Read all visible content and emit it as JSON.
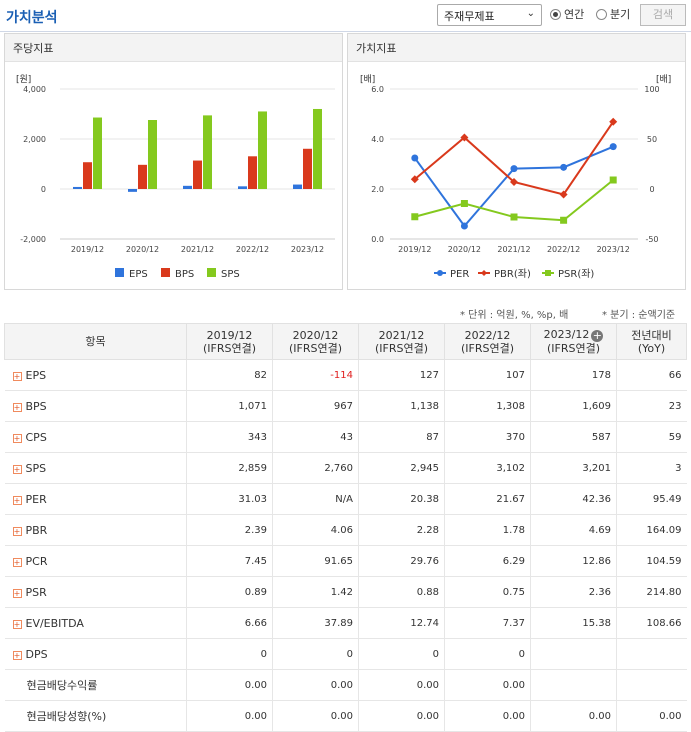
{
  "header": {
    "title": "가치분석",
    "select_value": "주재무제표",
    "radio_annual": "연간",
    "radio_quarter": "분기",
    "search_label": "검색"
  },
  "panels": {
    "left_title": "주당지표",
    "right_title": "가치지표"
  },
  "notes": {
    "unit": "* 단위 : 억원, %, %p, 배",
    "quarter": "* 분기 : 순액기준"
  },
  "colors": {
    "blue": "#2f74dc",
    "red": "#d9391c",
    "green": "#84c91e",
    "brand": "#1a5fb4"
  },
  "chart_data": [
    {
      "type": "bar",
      "unit_label": "[원]",
      "categories": [
        "2019/12",
        "2020/12",
        "2021/12",
        "2022/12",
        "2023/12"
      ],
      "series": [
        {
          "name": "EPS",
          "color": "#2f74dc",
          "values": [
            82,
            -114,
            127,
            107,
            178
          ]
        },
        {
          "name": "BPS",
          "color": "#d9391c",
          "values": [
            1071,
            967,
            1138,
            1308,
            1609
          ]
        },
        {
          "name": "SPS",
          "color": "#84c91e",
          "values": [
            2859,
            2760,
            2945,
            3102,
            3201
          ]
        }
      ],
      "ylim": [
        -2000,
        4000
      ],
      "yticks": [
        "4,000",
        "2,000",
        "0",
        "-2,000"
      ],
      "legend": "bottom"
    },
    {
      "type": "line",
      "left_unit": "[배]",
      "right_unit": "[배]",
      "categories": [
        "2019/12",
        "2020/12",
        "2021/12",
        "2022/12",
        "2023/12"
      ],
      "series": [
        {
          "name": "PER",
          "axis": "right",
          "color": "#2f74dc",
          "values": [
            31.03,
            null,
            20.38,
            21.67,
            42.36
          ]
        },
        {
          "name": "PBR(좌)",
          "axis": "left",
          "color": "#d9391c",
          "values": [
            2.39,
            4.06,
            2.28,
            1.78,
            4.69
          ]
        },
        {
          "name": "PSR(좌)",
          "axis": "left",
          "color": "#84c91e",
          "values": [
            0.89,
            1.42,
            0.88,
            0.75,
            2.36
          ]
        }
      ],
      "ylim_left": [
        0,
        6
      ],
      "ylim_right": [
        -50,
        100
      ],
      "yticks_left": [
        "6.0",
        "4.0",
        "2.0",
        "0.0"
      ],
      "yticks_right": [
        "100",
        "50",
        "0",
        "-50"
      ],
      "legend": "bottom"
    }
  ],
  "table": {
    "head": [
      "항목",
      "2019/12\n(IFRS연결)",
      "2020/12\n(IFRS연결)",
      "2021/12\n(IFRS연결)",
      "2022/12\n(IFRS연결)",
      "2023/12\n(IFRS연결)",
      "전년대비\n(YoY)"
    ],
    "rows": [
      {
        "label": "EPS",
        "expand": true,
        "cells": [
          "82",
          "-114",
          "127",
          "107",
          "178",
          "66"
        ]
      },
      {
        "label": "BPS",
        "expand": true,
        "cells": [
          "1,071",
          "967",
          "1,138",
          "1,308",
          "1,609",
          "23"
        ]
      },
      {
        "label": "CPS",
        "expand": true,
        "cells": [
          "343",
          "43",
          "87",
          "370",
          "587",
          "59"
        ]
      },
      {
        "label": "SPS",
        "expand": true,
        "cells": [
          "2,859",
          "2,760",
          "2,945",
          "3,102",
          "3,201",
          "3"
        ]
      },
      {
        "label": "PER",
        "expand": true,
        "cells": [
          "31.03",
          "N/A",
          "20.38",
          "21.67",
          "42.36",
          "95.49"
        ]
      },
      {
        "label": "PBR",
        "expand": true,
        "cells": [
          "2.39",
          "4.06",
          "2.28",
          "1.78",
          "4.69",
          "164.09"
        ]
      },
      {
        "label": "PCR",
        "expand": true,
        "cells": [
          "7.45",
          "91.65",
          "29.76",
          "6.29",
          "12.86",
          "104.59"
        ]
      },
      {
        "label": "PSR",
        "expand": true,
        "cells": [
          "0.89",
          "1.42",
          "0.88",
          "0.75",
          "2.36",
          "214.80"
        ]
      },
      {
        "label": "EV/EBITDA",
        "expand": true,
        "cells": [
          "6.66",
          "37.89",
          "12.74",
          "7.37",
          "15.38",
          "108.66"
        ]
      },
      {
        "label": "DPS",
        "expand": true,
        "cells": [
          "0",
          "0",
          "0",
          "0",
          "",
          ""
        ]
      },
      {
        "label": "현금배당수익률",
        "expand": false,
        "cells": [
          "0.00",
          "0.00",
          "0.00",
          "0.00",
          "",
          ""
        ]
      },
      {
        "label": "현금배당성향(%)",
        "expand": false,
        "cells": [
          "0.00",
          "0.00",
          "0.00",
          "0.00",
          "0.00",
          "0.00"
        ]
      }
    ]
  }
}
